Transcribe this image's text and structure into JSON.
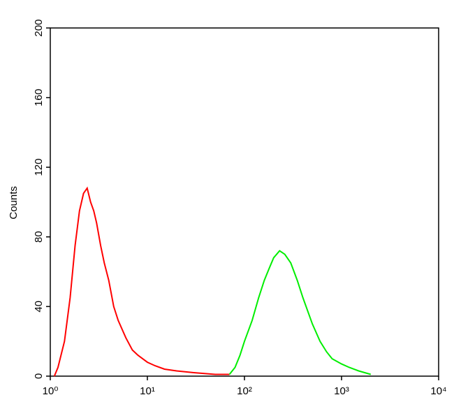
{
  "chart_data": {
    "type": "line",
    "xscale": "log",
    "ylabel": "Counts",
    "xlim": [
      1,
      10000
    ],
    "ylim": [
      0,
      200
    ],
    "xticks": [
      {
        "value": 1,
        "label": "10⁰"
      },
      {
        "value": 10,
        "label": "10¹"
      },
      {
        "value": 100,
        "label": "10²"
      },
      {
        "value": 1000,
        "label": "10³"
      },
      {
        "value": 10000,
        "label": "10⁴"
      }
    ],
    "yticks": [
      0,
      40,
      80,
      120,
      160,
      200
    ],
    "series": [
      {
        "color": "#ff0000",
        "x": [
          1.1,
          1.2,
          1.4,
          1.6,
          1.8,
          2.0,
          2.2,
          2.4,
          2.6,
          2.8,
          3.0,
          3.3,
          3.6,
          4.0,
          4.5,
          5,
          6,
          7,
          8,
          10,
          12,
          15,
          20,
          30,
          50,
          70
        ],
        "values": [
          0,
          5,
          20,
          45,
          75,
          95,
          105,
          108,
          100,
          95,
          88,
          75,
          65,
          55,
          40,
          32,
          22,
          15,
          12,
          8,
          6,
          4,
          3,
          2,
          1,
          1
        ]
      },
      {
        "color": "#00ee00",
        "x": [
          70,
          80,
          90,
          100,
          120,
          140,
          160,
          180,
          200,
          230,
          260,
          300,
          350,
          400,
          500,
          600,
          700,
          800,
          1000,
          1200,
          1500,
          2000
        ],
        "values": [
          1,
          5,
          12,
          20,
          32,
          45,
          55,
          62,
          68,
          72,
          70,
          65,
          55,
          45,
          30,
          20,
          14,
          10,
          7,
          5,
          3,
          1
        ]
      }
    ]
  }
}
